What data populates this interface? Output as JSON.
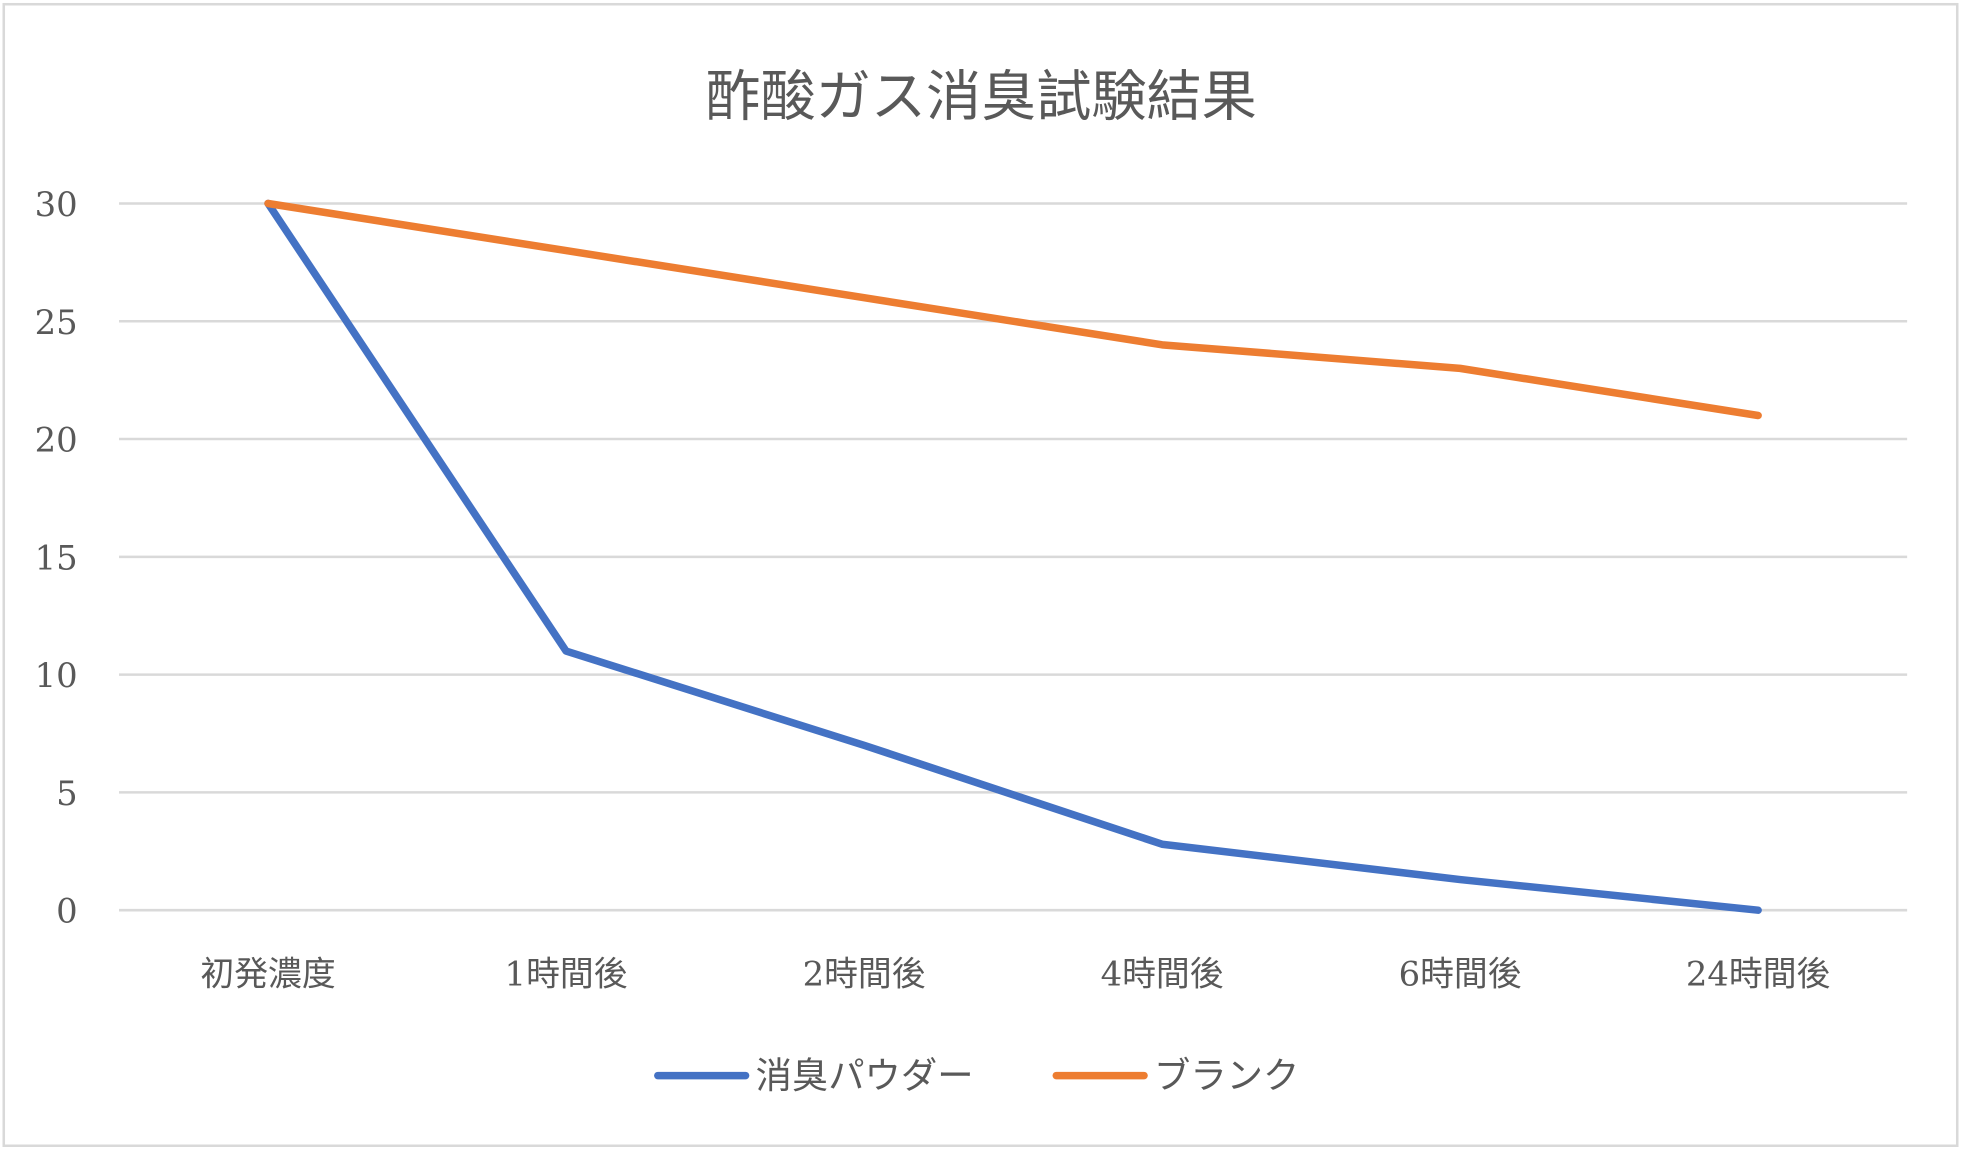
{
  "chart_data": {
    "type": "line",
    "title": "酢酸ガス消臭試験結果",
    "xlabel": "",
    "ylabel": "",
    "categories": [
      "初発濃度",
      "1時間後",
      "2時間後",
      "4時間後",
      "6時間後",
      "24時間後"
    ],
    "yticks": [
      "0",
      "5",
      "10",
      "15",
      "20",
      "25",
      "30"
    ],
    "ylim": [
      0,
      30
    ],
    "grid": true,
    "legend_position": "bottom",
    "series": [
      {
        "name": "消臭パウダー",
        "color": "#4472C4",
        "values": [
          30,
          11,
          7,
          2.8,
          1.3,
          0
        ]
      },
      {
        "name": "ブランク",
        "color": "#ED7D31",
        "values": [
          30,
          28,
          26,
          24,
          23,
          21
        ]
      }
    ]
  }
}
